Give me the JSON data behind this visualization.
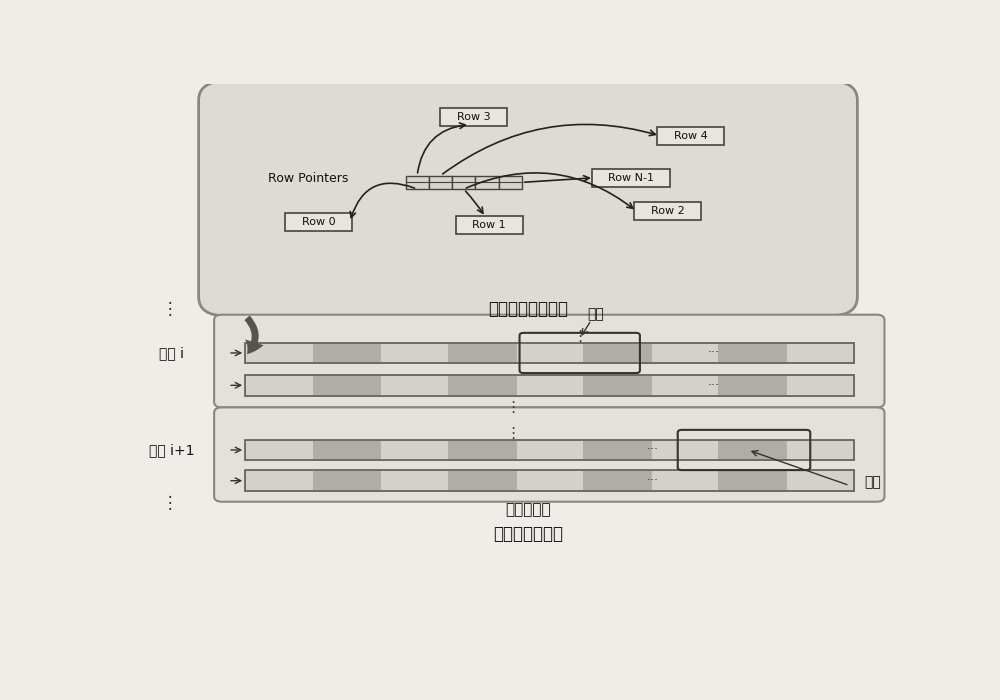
{
  "bg_color": "#f0ede8",
  "top_box_bg": "#dedad4",
  "top_box_border": "#888880",
  "row_box_bg": "#e8e4de",
  "row_box_border": "#555550",
  "discontinuous_label": "不连续的内存分配",
  "continuous_label": "连续的内存分配",
  "row_block_label": "行块",
  "parallel_group_label": "并行块行组",
  "color_i_label": "颜色 i",
  "color_i1_label": "颜色 i+1",
  "pointer_label": "Row Pointers",
  "stripe_light": "#d4d0ca",
  "stripe_dark": "#b0aca6",
  "strip_bg": "#c8c4be",
  "bar_border": "#666660",
  "group_border": "#888880",
  "group_bg": "#e4e0da",
  "white_cell": "#f0ede8"
}
